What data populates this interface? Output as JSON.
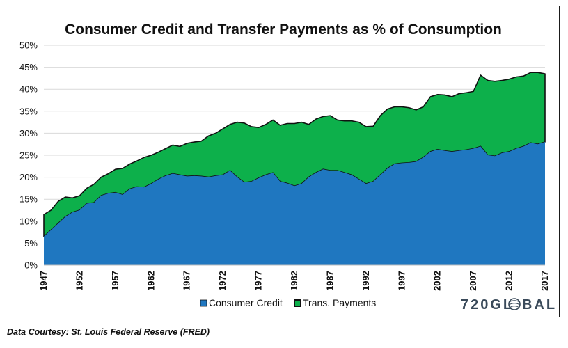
{
  "footer": {
    "source": "Data Courtesy: St. Louis Federal Reserve (FRED)"
  },
  "logo": {
    "text": "720GL",
    "text_end": "BAL"
  },
  "colors": {
    "consumer_credit": "#1f77c0",
    "trans_payments": "#0db04b",
    "outline": "#111111",
    "grid": "#d9d9d9"
  },
  "chart_data": {
    "type": "area",
    "stacked": true,
    "title": "Consumer Credit and Transfer Payments as % of Consumption",
    "xlabel": "",
    "ylabel": "",
    "ylim": [
      0,
      50
    ],
    "xlim": [
      1947,
      2017
    ],
    "y_ticks": [
      "0%",
      "5%",
      "10%",
      "15%",
      "20%",
      "25%",
      "30%",
      "35%",
      "40%",
      "45%",
      "50%"
    ],
    "x_ticks": [
      "1947",
      "1952",
      "1957",
      "1962",
      "1967",
      "1972",
      "1977",
      "1982",
      "1987",
      "1992",
      "1997",
      "2002",
      "2007",
      "2012",
      "2017"
    ],
    "grid": true,
    "legend_position": "bottom",
    "x": [
      1947,
      1948,
      1949,
      1950,
      1951,
      1952,
      1953,
      1954,
      1955,
      1956,
      1957,
      1958,
      1959,
      1960,
      1961,
      1962,
      1963,
      1964,
      1965,
      1966,
      1967,
      1968,
      1969,
      1970,
      1971,
      1972,
      1973,
      1974,
      1975,
      1976,
      1977,
      1978,
      1979,
      1980,
      1981,
      1982,
      1983,
      1984,
      1985,
      1986,
      1987,
      1988,
      1989,
      1990,
      1991,
      1992,
      1993,
      1994,
      1995,
      1996,
      1997,
      1998,
      1999,
      2000,
      2001,
      2002,
      2003,
      2004,
      2005,
      2006,
      2007,
      2008,
      2009,
      2010,
      2011,
      2012,
      2013,
      2014,
      2015,
      2016,
      2017
    ],
    "series": [
      {
        "name": "Consumer Credit",
        "values": [
          6.5,
          8,
          9.5,
          11,
          12,
          12.5,
          14,
          14.2,
          15.8,
          16.3,
          16.5,
          16,
          17.3,
          17.8,
          17.7,
          18.5,
          19.5,
          20.3,
          20.8,
          20.5,
          20.2,
          20.3,
          20.2,
          20,
          20.3,
          20.5,
          21.5,
          20,
          18.8,
          19,
          19.8,
          20.5,
          21,
          19,
          18.6,
          18,
          18.5,
          20,
          21,
          21.8,
          21.5,
          21.5,
          21,
          20.5,
          19.5,
          18.5,
          19,
          20.5,
          22,
          23,
          23.2,
          23.3,
          23.5,
          24.5,
          25.8,
          26.3,
          26,
          25.8,
          26,
          26.2,
          26.5,
          27,
          25,
          24.8,
          25.5,
          25.8,
          26.5,
          27,
          27.8,
          27.5,
          28
        ]
      },
      {
        "name": "Trans. Payments",
        "values": [
          5,
          4.5,
          5,
          4.5,
          3.3,
          3.3,
          3.5,
          4.2,
          4.2,
          4.5,
          5.3,
          6,
          5.7,
          5.9,
          6.8,
          6.5,
          6.2,
          6.2,
          6.5,
          6.5,
          7.5,
          7.7,
          8,
          9.4,
          9.7,
          10.5,
          10.5,
          12.5,
          13.5,
          12.5,
          11.5,
          11.5,
          12,
          12.8,
          13.6,
          14.2,
          14,
          12,
          12.2,
          12,
          12.5,
          11.5,
          11.8,
          12.3,
          13,
          13,
          12.6,
          13.5,
          13.5,
          13,
          12.8,
          12.5,
          11.8,
          11.5,
          12.5,
          12.5,
          12.7,
          12.5,
          13,
          13,
          13,
          16.2,
          17,
          17,
          16.5,
          16.5,
          16.3,
          16,
          16,
          16.3,
          15.5
        ]
      }
    ]
  }
}
